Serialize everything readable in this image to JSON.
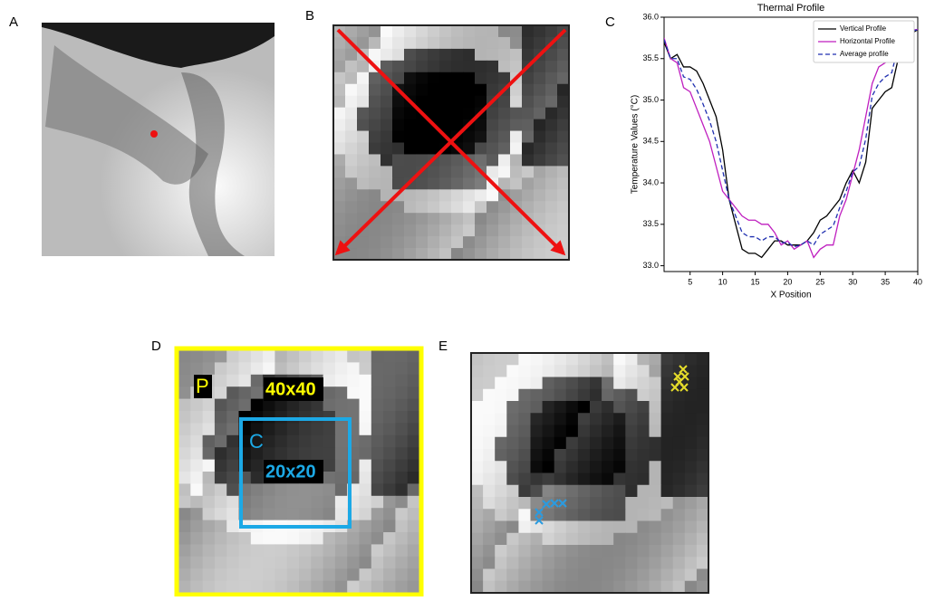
{
  "panel_labels": [
    "A",
    "B",
    "C",
    "D",
    "E"
  ],
  "panel_d": {
    "outer_label": "P",
    "outer_size": "40x40",
    "inner_label": "C",
    "inner_size": "20x20"
  },
  "chart_data": {
    "type": "line",
    "title": "Thermal Profile",
    "x_label": "X Position",
    "y_label": "Temperature Values (°C)",
    "x": [
      1,
      2,
      3,
      4,
      5,
      6,
      7,
      8,
      9,
      10,
      11,
      12,
      13,
      14,
      15,
      16,
      17,
      18,
      19,
      20,
      21,
      22,
      23,
      24,
      25,
      26,
      27,
      28,
      29,
      30,
      31,
      32,
      33,
      34,
      35,
      36,
      37,
      38,
      39,
      40
    ],
    "series": [
      {
        "name": "Vertical Profile",
        "color": "#000000",
        "dash": false,
        "values": [
          35.7,
          35.5,
          35.55,
          35.4,
          35.4,
          35.35,
          35.2,
          35.0,
          34.8,
          34.4,
          33.8,
          33.5,
          33.2,
          33.15,
          33.15,
          33.1,
          33.2,
          33.3,
          33.3,
          33.25,
          33.25,
          33.25,
          33.3,
          33.4,
          33.55,
          33.6,
          33.7,
          33.8,
          34.0,
          34.15,
          34.0,
          34.25,
          34.9,
          35.0,
          35.1,
          35.15,
          35.5,
          35.8,
          35.8,
          35.85
        ]
      },
      {
        "name": "Horizontal Profile",
        "color": "#bf1fbf",
        "dash": false,
        "values": [
          35.75,
          35.5,
          35.45,
          35.15,
          35.1,
          34.9,
          34.7,
          34.5,
          34.2,
          33.9,
          33.8,
          33.7,
          33.6,
          33.55,
          33.55,
          33.5,
          33.5,
          33.4,
          33.25,
          33.3,
          33.2,
          33.25,
          33.3,
          33.1,
          33.2,
          33.25,
          33.25,
          33.6,
          33.8,
          34.1,
          34.4,
          34.8,
          35.2,
          35.4,
          35.45,
          35.5,
          35.8,
          35.8,
          35.85,
          35.85
        ]
      },
      {
        "name": "Average profile",
        "color": "#1f2fb0",
        "dash": true,
        "values": [
          35.73,
          35.5,
          35.5,
          35.28,
          35.25,
          35.13,
          34.95,
          34.75,
          34.5,
          34.15,
          33.8,
          33.6,
          33.4,
          33.35,
          33.35,
          33.3,
          33.35,
          33.35,
          33.28,
          33.28,
          33.23,
          33.25,
          33.3,
          33.25,
          33.38,
          33.43,
          33.48,
          33.7,
          33.9,
          34.13,
          34.2,
          34.53,
          35.05,
          35.2,
          35.28,
          35.33,
          35.65,
          35.8,
          35.83,
          35.85
        ]
      }
    ],
    "xlim": [
      1,
      40
    ],
    "ylim": [
      32.93,
      36.0
    ],
    "xticks": [
      5,
      10,
      15,
      20,
      25,
      30,
      35,
      40
    ],
    "yticks": [
      {
        "value": 33,
        "label": "33.0"
      },
      33.5,
      {
        "value": 34,
        "label": "34.0"
      },
      34.5,
      {
        "value": 35,
        "label": "35.0"
      },
      35.5,
      {
        "value": 36,
        "label": "36.0"
      }
    ],
    "legend": "upper right"
  }
}
